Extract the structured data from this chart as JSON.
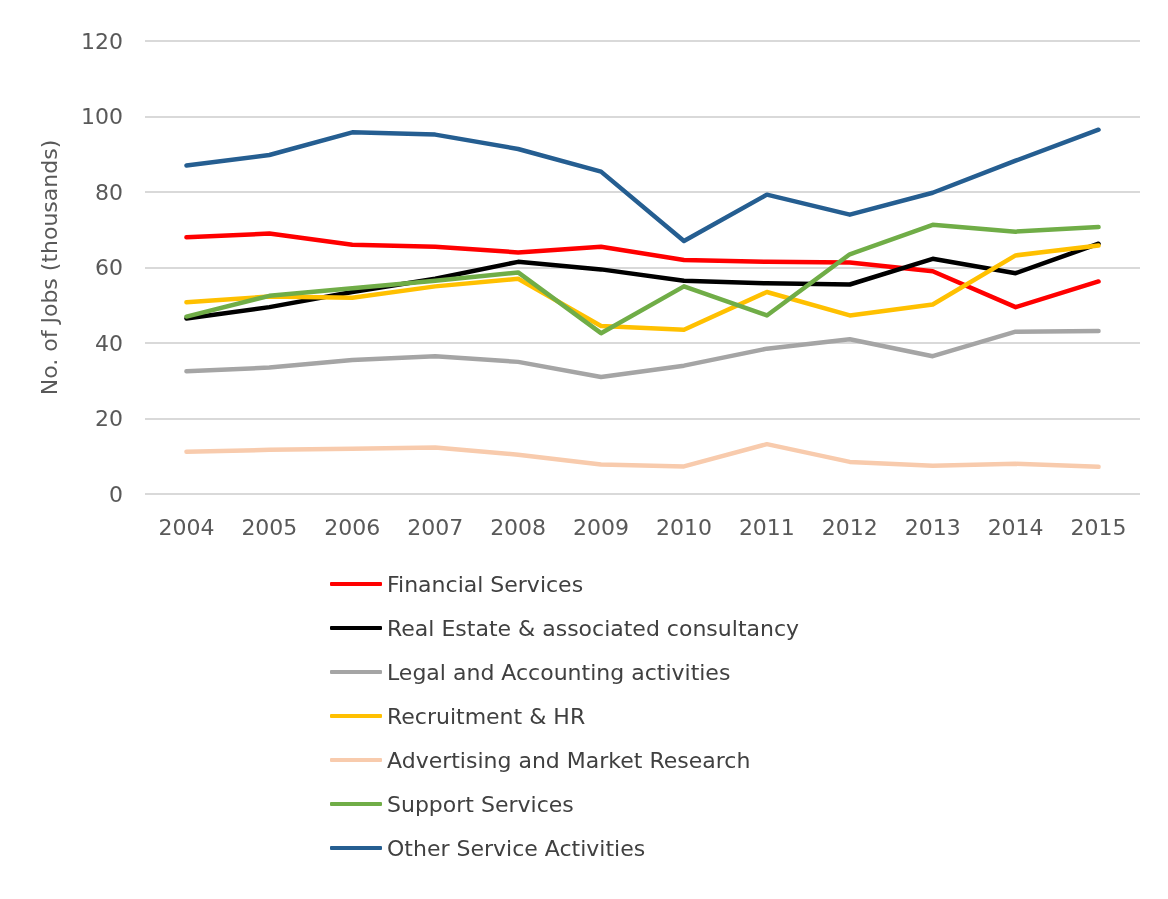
{
  "chart_data": {
    "type": "line",
    "ylabel": "No. of Jobs (thousands)",
    "categories": [
      "2004",
      "2005",
      "2006",
      "2007",
      "2008",
      "2009",
      "2010",
      "2011",
      "2012",
      "2013",
      "2014",
      "2015"
    ],
    "series": [
      {
        "name": "Financial Services",
        "color": "#ff0000",
        "values": [
          68,
          69,
          66,
          65.5,
          64,
          65.5,
          62,
          61.5,
          61.3,
          59,
          49.5,
          56.3
        ]
      },
      {
        "name": "Real Estate & associated consultancy",
        "color": "#000000",
        "values": [
          46.5,
          49.5,
          53.5,
          57,
          61.5,
          59.5,
          56.5,
          55.8,
          55.5,
          62.3,
          58.5,
          66.3
        ]
      },
      {
        "name": "Legal and Accounting activities",
        "color": "#a5a5a5",
        "values": [
          32.5,
          33.5,
          35.5,
          36.5,
          35,
          31,
          34,
          38.5,
          41,
          36.5,
          43,
          43.2
        ]
      },
      {
        "name": "Recruitment & HR",
        "color": "#ffc000",
        "values": [
          50.8,
          52.3,
          52,
          55,
          57,
          44.5,
          43.5,
          53.5,
          47.3,
          50.2,
          63.2,
          65.8
        ]
      },
      {
        "name": "Advertising and Market Research",
        "color": "#f8cbad",
        "values": [
          11.2,
          11.7,
          12,
          12.3,
          10.4,
          7.8,
          7.3,
          13.2,
          8.5,
          7.5,
          8,
          7.2
        ]
      },
      {
        "name": "Support Services",
        "color": "#70ad47",
        "values": [
          47,
          52.5,
          54.5,
          56.5,
          58.7,
          42.6,
          55,
          47.3,
          63.5,
          71.3,
          69.5,
          70.7
        ]
      },
      {
        "name": "Other Service Activities",
        "color": "#255e91",
        "values": [
          87,
          89.8,
          95.8,
          95.2,
          91.4,
          85.4,
          67,
          79.3,
          74,
          79.8,
          88.3,
          96.5
        ]
      }
    ],
    "ylim": [
      0,
      120
    ],
    "yticks": [
      0,
      20,
      40,
      60,
      80,
      100,
      120
    ],
    "grid": "y",
    "legend": "bottom",
    "marker": "none",
    "line_style": "solid"
  }
}
